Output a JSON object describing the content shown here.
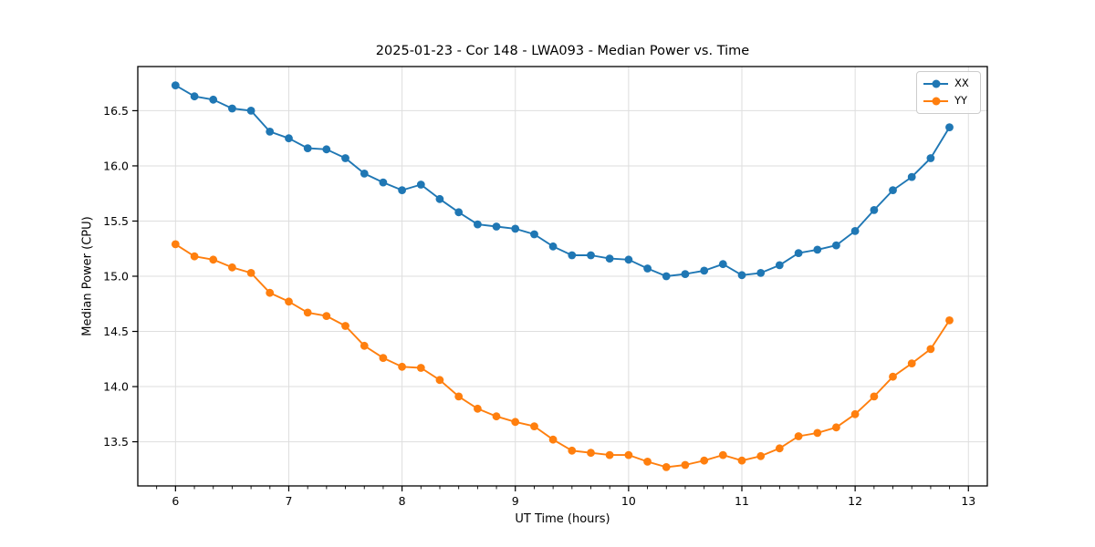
{
  "figure": {
    "background": "#ffffff",
    "grid_color": "#dedede",
    "spine_color": "#000000",
    "text_color": "#000000"
  },
  "chart_data": {
    "type": "line",
    "title": "2025-01-23 - Cor 148 - LWA093 - Median Power vs. Time",
    "xlabel": "UT Time (hours)",
    "ylabel": "Median Power (CPU)",
    "xlim": [
      5.667,
      13.167
    ],
    "ylim": [
      13.1,
      16.9
    ],
    "xticks": [
      6,
      7,
      8,
      9,
      10,
      11,
      12,
      13
    ],
    "yticks": [
      13.5,
      14.0,
      14.5,
      15.0,
      15.5,
      16.0,
      16.5
    ],
    "x_minor_step": 0.16667,
    "grid": true,
    "legend_position": "upper right",
    "marker": "circle",
    "x": [
      6.0,
      6.167,
      6.333,
      6.5,
      6.667,
      6.833,
      7.0,
      7.167,
      7.333,
      7.5,
      7.667,
      7.833,
      8.0,
      8.167,
      8.333,
      8.5,
      8.667,
      8.833,
      9.0,
      9.167,
      9.333,
      9.5,
      9.667,
      9.833,
      10.0,
      10.167,
      10.333,
      10.5,
      10.667,
      10.833,
      11.0,
      11.167,
      11.333,
      11.5,
      11.667,
      11.833,
      12.0,
      12.167,
      12.333,
      12.5,
      12.667,
      12.833
    ],
    "series": [
      {
        "name": "XX",
        "color": "#1f77b4",
        "values": [
          16.73,
          16.63,
          16.6,
          16.52,
          16.5,
          16.31,
          16.25,
          16.16,
          16.15,
          16.07,
          15.93,
          15.85,
          15.78,
          15.83,
          15.7,
          15.58,
          15.47,
          15.45,
          15.43,
          15.38,
          15.27,
          15.19,
          15.19,
          15.16,
          15.15,
          15.07,
          15.0,
          15.02,
          15.05,
          15.11,
          15.01,
          15.03,
          15.1,
          15.21,
          15.24,
          15.28,
          15.41,
          15.6,
          15.78,
          15.9,
          16.07,
          16.35
        ]
      },
      {
        "name": "YY",
        "color": "#ff7f0e",
        "values": [
          15.29,
          15.18,
          15.15,
          15.08,
          15.03,
          14.85,
          14.77,
          14.67,
          14.64,
          14.55,
          14.37,
          14.26,
          14.18,
          14.17,
          14.06,
          13.91,
          13.8,
          13.73,
          13.68,
          13.64,
          13.52,
          13.42,
          13.4,
          13.38,
          13.38,
          13.32,
          13.27,
          13.29,
          13.33,
          13.38,
          13.33,
          13.37,
          13.44,
          13.55,
          13.58,
          13.63,
          13.75,
          13.91,
          14.09,
          14.21,
          14.34,
          14.6
        ]
      }
    ]
  }
}
